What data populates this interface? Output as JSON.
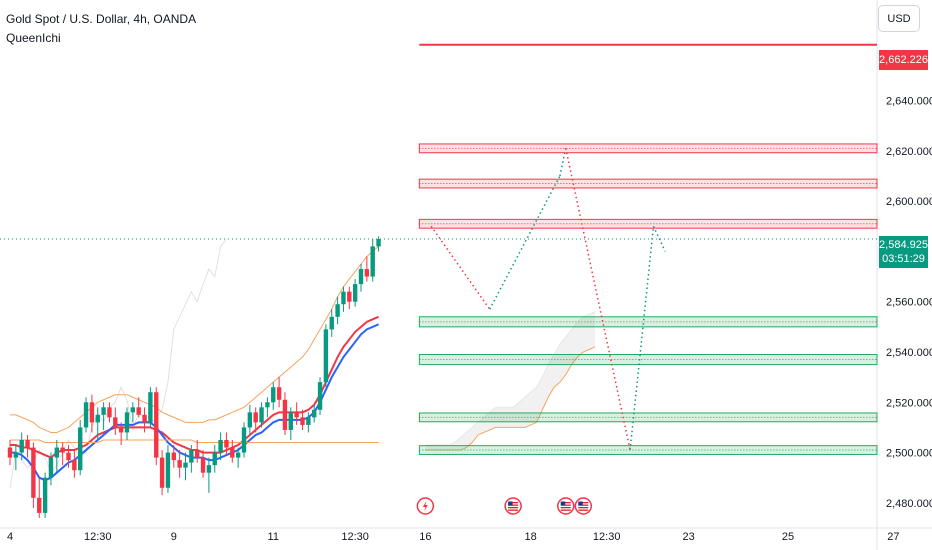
{
  "header": {
    "title": "Gold Spot / U.S. Dollar, 4h, OANDA",
    "indicator": "QueenIchi"
  },
  "currency_button": "USD",
  "price_tags": {
    "target": {
      "value": "2,662.226",
      "color": "#f23645"
    },
    "current": {
      "value": "2,584.925",
      "countdown": "03:51:29",
      "color": "#089981"
    }
  },
  "chart_data": {
    "type": "candlestick",
    "title": "Gold Spot / U.S. Dollar, 4h, OANDA",
    "y_ticks": [
      2480,
      2500,
      2520,
      2540,
      2560,
      2580,
      2600,
      2620,
      2640
    ],
    "y_tick_labels": [
      "2,480.000",
      "2,500.000",
      "2,520.000",
      "2,540.000",
      "2,560.000",
      "",
      "2,600.000",
      "2,620.000",
      "2,640.000"
    ],
    "ylim": [
      2470,
      2680
    ],
    "x_ticks": [
      {
        "label": "4",
        "idx": 0
      },
      {
        "label": "12:30",
        "idx": 15
      },
      {
        "label": "9",
        "idx": 28
      },
      {
        "label": "11",
        "idx": 45
      },
      {
        "label": "12:30",
        "idx": 59
      },
      {
        "label": "16",
        "idx": 71
      },
      {
        "label": "18",
        "idx": 89
      },
      {
        "label": "12:30",
        "idx": 102
      },
      {
        "label": "23",
        "idx": 116
      },
      {
        "label": "25",
        "idx": 133
      },
      {
        "label": "27",
        "idx": 151
      }
    ],
    "candles": [
      [
        2502,
        2505,
        2495,
        2498
      ],
      [
        2498,
        2503,
        2493,
        2500
      ],
      [
        2500,
        2508,
        2497,
        2505
      ],
      [
        2505,
        2507,
        2498,
        2502
      ],
      [
        2502,
        2504,
        2478,
        2482
      ],
      [
        2482,
        2490,
        2474,
        2476
      ],
      [
        2476,
        2492,
        2474,
        2490
      ],
      [
        2490,
        2500,
        2487,
        2498
      ],
      [
        2498,
        2505,
        2492,
        2502
      ],
      [
        2502,
        2504,
        2495,
        2500
      ],
      [
        2500,
        2503,
        2494,
        2497
      ],
      [
        2497,
        2501,
        2490,
        2493
      ],
      [
        2493,
        2513,
        2491,
        2510
      ],
      [
        2510,
        2522,
        2508,
        2520
      ],
      [
        2520,
        2523,
        2508,
        2512
      ],
      [
        2512,
        2518,
        2505,
        2515
      ],
      [
        2515,
        2520,
        2509,
        2518
      ],
      [
        2518,
        2520,
        2512,
        2514
      ],
      [
        2514,
        2518,
        2507,
        2510
      ],
      [
        2510,
        2512,
        2503,
        2508
      ],
      [
        2508,
        2518,
        2505,
        2516
      ],
      [
        2516,
        2520,
        2512,
        2518
      ],
      [
        2518,
        2522,
        2514,
        2515
      ],
      [
        2515,
        2518,
        2508,
        2512
      ],
      [
        2512,
        2526,
        2510,
        2524
      ],
      [
        2524,
        2526,
        2495,
        2498
      ],
      [
        2498,
        2501,
        2483,
        2486
      ],
      [
        2486,
        2503,
        2484,
        2500
      ],
      [
        2500,
        2503,
        2494,
        2497
      ],
      [
        2497,
        2501,
        2490,
        2494
      ],
      [
        2494,
        2500,
        2489,
        2496
      ],
      [
        2496,
        2503,
        2492,
        2501
      ],
      [
        2501,
        2505,
        2496,
        2498
      ],
      [
        2498,
        2501,
        2490,
        2492
      ],
      [
        2492,
        2498,
        2484,
        2495
      ],
      [
        2495,
        2503,
        2492,
        2500
      ],
      [
        2500,
        2508,
        2497,
        2505
      ],
      [
        2505,
        2508,
        2499,
        2502
      ],
      [
        2502,
        2505,
        2496,
        2498
      ],
      [
        2498,
        2502,
        2494,
        2500
      ],
      [
        2500,
        2512,
        2498,
        2510
      ],
      [
        2510,
        2519,
        2507,
        2516
      ],
      [
        2516,
        2518,
        2508,
        2512
      ],
      [
        2512,
        2520,
        2510,
        2518
      ],
      [
        2518,
        2522,
        2514,
        2520
      ],
      [
        2520,
        2528,
        2517,
        2526
      ],
      [
        2526,
        2530,
        2518,
        2521
      ],
      [
        2521,
        2524,
        2507,
        2509
      ],
      [
        2509,
        2518,
        2505,
        2516
      ],
      [
        2516,
        2520,
        2511,
        2514
      ],
      [
        2514,
        2517,
        2509,
        2511
      ],
      [
        2511,
        2516,
        2508,
        2514
      ],
      [
        2514,
        2519,
        2512,
        2517
      ],
      [
        2517,
        2530,
        2515,
        2528
      ],
      [
        2528,
        2551,
        2526,
        2549
      ],
      [
        2549,
        2557,
        2546,
        2554
      ],
      [
        2554,
        2562,
        2551,
        2559
      ],
      [
        2559,
        2566,
        2556,
        2564
      ],
      [
        2564,
        2566,
        2557,
        2560
      ],
      [
        2560,
        2569,
        2558,
        2567
      ],
      [
        2567,
        2575,
        2564,
        2573
      ],
      [
        2573,
        2578,
        2568,
        2570
      ],
      [
        2570,
        2585,
        2568,
        2582
      ],
      [
        2582,
        2586,
        2580,
        2584.925
      ]
    ],
    "series": [
      {
        "values": [
          2503,
          2503,
          2502,
          2502,
          2501,
          2500,
          2499,
          2498,
          2500,
          2501,
          2501,
          2501,
          2502,
          2503,
          2505,
          2507,
          2508,
          2509,
          2510,
          2510,
          2510,
          2510,
          2510,
          2510,
          2510,
          2509,
          2508,
          2506,
          2504,
          2503,
          2502,
          2501,
          2501,
          2500,
          2500,
          2500,
          2500,
          2501,
          2502,
          2503,
          2505,
          2507,
          2509,
          2511,
          2513,
          2515,
          2516,
          2516,
          2516,
          2516,
          2516,
          2517,
          2519,
          2523,
          2528,
          2533,
          2538,
          2542,
          2545,
          2548,
          2550,
          2552,
          2553,
          2554
        ]
      },
      {
        "values": [
          2500,
          2500,
          2499,
          2497,
          2494,
          2490,
          2489,
          2490,
          2492,
          2494,
          2496,
          2497,
          2499,
          2501,
          2503,
          2505,
          2507,
          2509,
          2511,
          2511,
          2511,
          2511,
          2512,
          2512,
          2512,
          2510,
          2507,
          2504,
          2502,
          2500,
          2499,
          2498,
          2498,
          2498,
          2497,
          2497,
          2498,
          2499,
          2500,
          2501,
          2503,
          2505,
          2507,
          2508,
          2510,
          2512,
          2513,
          2513,
          2513,
          2513,
          2513,
          2514,
          2516,
          2520,
          2525,
          2530,
          2534,
          2538,
          2541,
          2544,
          2547,
          2549,
          2550,
          2551
        ]
      },
      {
        "values": [
          2515,
          2515,
          2514,
          2513,
          2512,
          2510,
          2509,
          2508,
          2508,
          2509,
          2510,
          2512,
          2514,
          2516,
          2518,
          2520,
          2521,
          2522,
          2523,
          2523,
          2523,
          2522,
          2521,
          2520,
          2519,
          2518,
          2516,
          2515,
          2514,
          2513,
          2512,
          2512,
          2512,
          2512,
          2513,
          2513,
          2514,
          2515,
          2516,
          2517,
          2518,
          2520,
          2522,
          2524,
          2526,
          2528,
          2530,
          2532,
          2534,
          2536,
          2538,
          2541,
          2545,
          2549,
          2553,
          2557,
          2562,
          2566,
          2569,
          2572,
          2575,
          2578,
          2580,
          2582
        ]
      },
      {
        "values": [
          2505,
          2505,
          2505,
          2505,
          2505,
          2505,
          2504,
          2504,
          2504,
          2504,
          2504,
          2504,
          2504,
          2504,
          2504,
          2504,
          2505,
          2505,
          2505,
          2505,
          2505,
          2505,
          2505,
          2505,
          2505,
          2505,
          2505,
          2505,
          2505,
          2505,
          2505,
          2505,
          2504,
          2504,
          2504,
          2504,
          2504,
          2504,
          2504,
          2504,
          2504,
          2504,
          2504,
          2504,
          2504,
          2504,
          2504,
          2504,
          2504,
          2504,
          2504,
          2504,
          2504,
          2504,
          2504,
          2504,
          2504,
          2504,
          2504,
          2504,
          2504,
          2504,
          2504,
          2504
        ]
      }
    ],
    "future_cloud": {
      "start": 71,
      "a": [
        2501,
        2501,
        2501,
        2501,
        2501,
        2501,
        2501,
        2502,
        2504,
        2507,
        2508,
        2509,
        2510,
        2510,
        2510,
        2510,
        2510,
        2510,
        2511,
        2512,
        2517,
        2522,
        2526,
        2528,
        2531,
        2535,
        2538,
        2540,
        2541,
        2542
      ],
      "b": [
        2503,
        2503,
        2503,
        2503,
        2503,
        2504,
        2506,
        2508,
        2510,
        2512,
        2514,
        2516,
        2518,
        2518,
        2518,
        2518,
        2520,
        2522,
        2524,
        2526,
        2530,
        2535,
        2539,
        2543,
        2546,
        2549,
        2552,
        2554,
        2555,
        2556
      ]
    },
    "levels": [
      {
        "price": 2662.226,
        "type": "line",
        "color": "#f23645"
      },
      {
        "price": 2621,
        "type": "zone",
        "color": "red",
        "height": 3.5
      },
      {
        "price": 2607,
        "type": "zone",
        "color": "red",
        "height": 3.5
      },
      {
        "price": 2591,
        "type": "zone",
        "color": "red",
        "height": 3.5
      },
      {
        "price": 2552,
        "type": "zone",
        "color": "green",
        "height": 4
      },
      {
        "price": 2537,
        "type": "zone",
        "color": "green",
        "height": 4
      },
      {
        "price": 2514,
        "type": "zone",
        "color": "green",
        "height": 3.5
      },
      {
        "price": 2501,
        "type": "zone",
        "color": "green",
        "height": 3.5
      }
    ],
    "projection": [
      {
        "from": [
          72,
          2590
        ],
        "to": [
          82,
          2557
        ],
        "color": "#f23645"
      },
      {
        "from": [
          82,
          2557
        ],
        "to": [
          94,
          2610
        ],
        "color": "#089981"
      },
      {
        "from": [
          94,
          2610
        ],
        "to": [
          95,
          2621
        ],
        "color": "#089981"
      },
      {
        "from": [
          95,
          2621
        ],
        "to": [
          106,
          2501
        ],
        "color": "#f23645"
      },
      {
        "from": [
          106,
          2501
        ],
        "to": [
          110,
          2590
        ],
        "color": "#089981"
      },
      {
        "from": [
          110,
          2590
        ],
        "to": [
          112,
          2580
        ],
        "color": "#089981"
      }
    ],
    "events": [
      {
        "type": "lightning",
        "idx": 71
      },
      {
        "type": "flag",
        "idx": 86
      },
      {
        "type": "flag",
        "idx": 95
      },
      {
        "type": "flag",
        "idx": 98
      }
    ],
    "current_price": 2584.925
  }
}
